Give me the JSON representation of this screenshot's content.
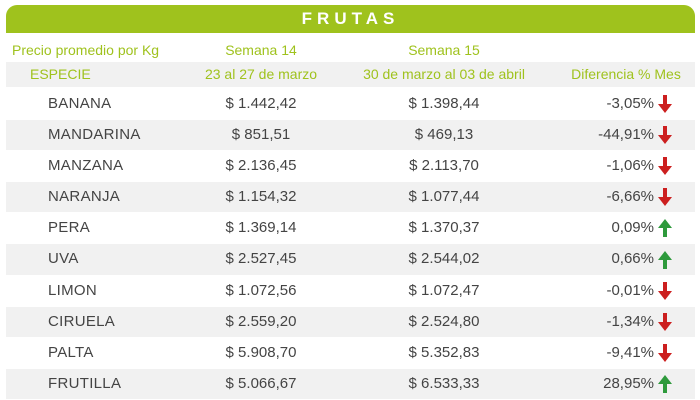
{
  "title": "FRUTAS",
  "header": {
    "price_label": "Precio promedio por Kg",
    "week14": "Semana 14",
    "week15": "Semana 15",
    "species_label": "ESPECIE",
    "week14_dates": "23 al 27 de marzo",
    "week15_dates": "30 de marzo al 03 de abril",
    "diff_label": "Diferencia % Mes"
  },
  "colors": {
    "accent": "#9fc21d",
    "down": "#cc1f1f",
    "up": "#2e9a3c"
  },
  "rows": [
    {
      "name": "BANANA",
      "w14": "$ 1.442,42",
      "w15": "$ 1.398,44",
      "diff": "-3,05%",
      "trend": "down",
      "icon": "arrow-down-icon"
    },
    {
      "name": "MANDARINA",
      "w14": "$ 851,51",
      "w15": "$ 469,13",
      "diff": "-44,91%",
      "trend": "down",
      "icon": "arrow-down-icon"
    },
    {
      "name": "MANZANA",
      "w14": "$ 2.136,45",
      "w15": "$ 2.113,70",
      "diff": "-1,06%",
      "trend": "down",
      "icon": "arrow-down-icon"
    },
    {
      "name": "NARANJA",
      "w14": "$ 1.154,32",
      "w15": "$ 1.077,44",
      "diff": "-6,66%",
      "trend": "down",
      "icon": "arrow-down-icon"
    },
    {
      "name": "PERA",
      "w14": "$ 1.369,14",
      "w15": "$ 1.370,37",
      "diff": "0,09%",
      "trend": "up",
      "icon": "arrow-up-icon"
    },
    {
      "name": "UVA",
      "w14": "$ 2.527,45",
      "w15": "$ 2.544,02",
      "diff": "0,66%",
      "trend": "up",
      "icon": "arrow-up-icon"
    },
    {
      "name": "LIMON",
      "w14": "$ 1.072,56",
      "w15": "$ 1.072,47",
      "diff": "-0,01%",
      "trend": "down",
      "icon": "arrow-down-icon"
    },
    {
      "name": "CIRUELA",
      "w14": "$ 2.559,20",
      "w15": "$ 2.524,80",
      "diff": "-1,34%",
      "trend": "down",
      "icon": "arrow-down-icon"
    },
    {
      "name": "PALTA",
      "w14": "$ 5.908,70",
      "w15": "$ 5.352,83",
      "diff": "-9,41%",
      "trend": "down",
      "icon": "arrow-down-icon"
    },
    {
      "name": "FRUTILLA",
      "w14": "$ 5.066,67",
      "w15": "$ 6.533,33",
      "diff": "28,95%",
      "trend": "up",
      "icon": "arrow-up-icon"
    }
  ]
}
